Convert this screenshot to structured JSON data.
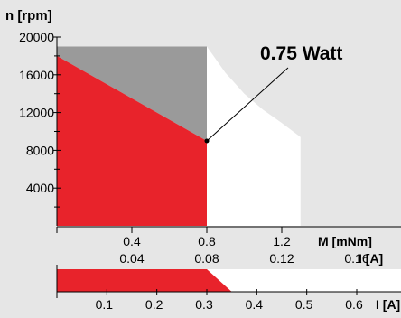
{
  "chart_data": {
    "type": "area",
    "y_axis": {
      "label": "n [rpm]",
      "range": [
        0,
        20000
      ],
      "ticks": [
        4000,
        8000,
        12000,
        16000,
        20000
      ],
      "tick_labels": [
        "4000",
        "8000",
        "12000",
        "16000",
        "20000"
      ],
      "minor_ticks": [
        2000,
        6000,
        10000,
        14000,
        18000
      ]
    },
    "x_axis_torque": {
      "label": "M [mNm]",
      "range": [
        0,
        1.3
      ],
      "ticks": [
        0.4,
        0.8,
        1.2
      ],
      "tick_labels": [
        "0.4",
        "0.8",
        "1.2"
      ]
    },
    "x_axis_current_top": {
      "label": "I [A]",
      "ticks": [
        0.04,
        0.08,
        0.12,
        0.16
      ],
      "tick_labels": [
        "0.04",
        "0.08",
        "0.12",
        "0.16"
      ]
    },
    "x_axis_current_bottom": {
      "label": "I [A]",
      "range": [
        0,
        0.7
      ],
      "ticks": [
        0.1,
        0.2,
        0.3,
        0.4,
        0.5,
        0.6
      ],
      "tick_labels": [
        "0.1",
        "0.2",
        "0.3",
        "0.4",
        "0.5",
        "0.6"
      ]
    },
    "annotation": {
      "text": "0.75 Watt",
      "point": {
        "M": 0.8,
        "n": 9000
      }
    },
    "regions": {
      "max_speed": 19000,
      "max_torque_continuous": 0.8,
      "speed_torque_line": [
        {
          "M": 0.0,
          "n": 18000
        },
        {
          "M": 0.8,
          "n": 9000
        }
      ],
      "power_limit_curve": [
        {
          "M": 0.8,
          "n": 19000
        },
        {
          "M": 0.9,
          "n": 16200
        },
        {
          "M": 1.0,
          "n": 14000
        },
        {
          "M": 1.1,
          "n": 12300
        },
        {
          "M": 1.2,
          "n": 10900
        },
        {
          "M": 1.3,
          "n": 9400
        }
      ],
      "current_bar_continuous": 0.3,
      "current_bar_end": 0.35
    },
    "colors": {
      "background": "#e6e6e6",
      "continuous_region": "#e8232b",
      "intermittent_region": "#9a9a9a",
      "power_region": "#ffffff",
      "axis": "#000000"
    }
  }
}
